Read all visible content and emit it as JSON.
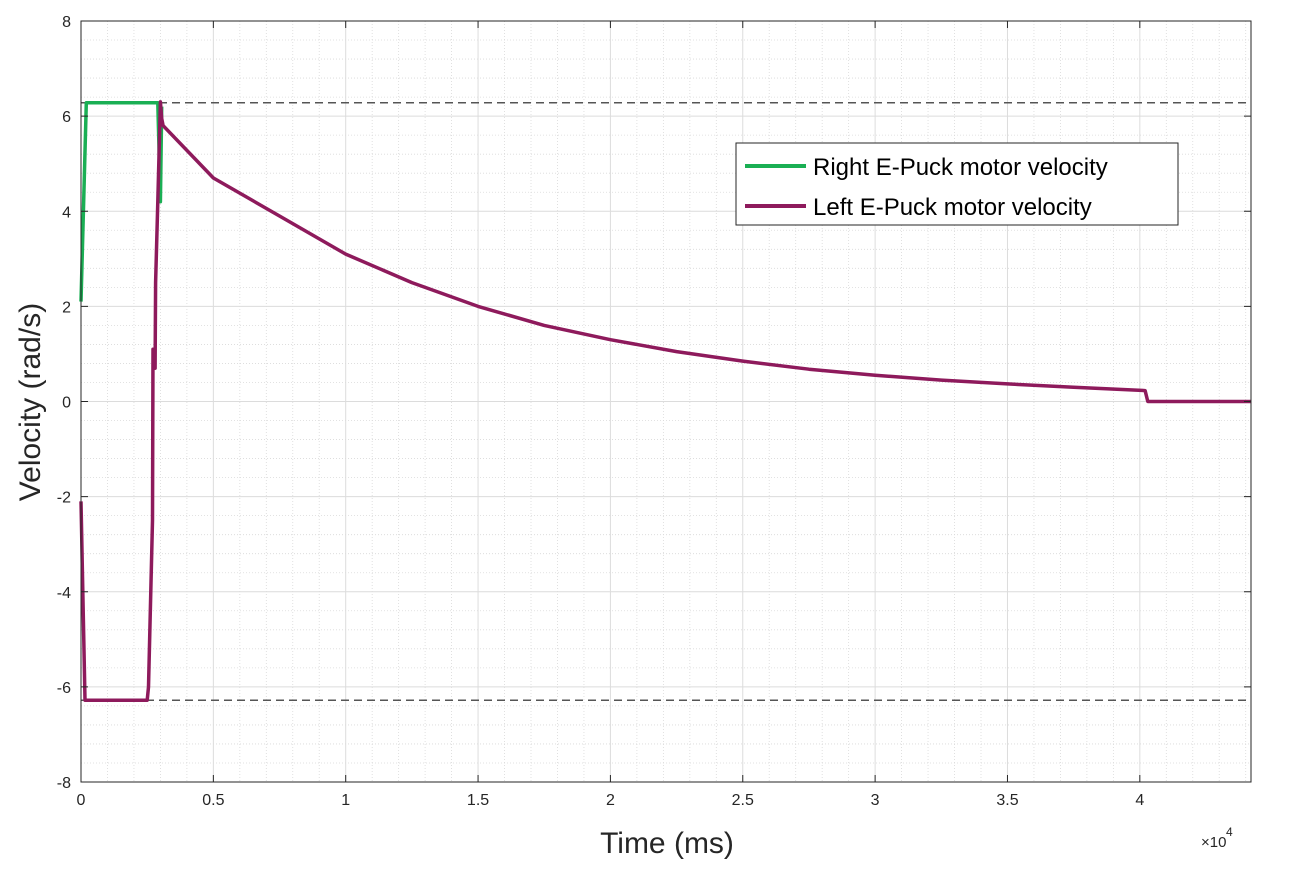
{
  "chart_data": {
    "type": "line",
    "title": "",
    "xlabel": "Time (ms)",
    "ylabel": "Velocity (rad/s)",
    "x_multiplier": "×10",
    "x_multiplier_exp": "4",
    "xlim": [
      0,
      44200
    ],
    "ylim": [
      -8,
      8
    ],
    "xticks": [
      0,
      5000,
      10000,
      15000,
      20000,
      25000,
      30000,
      35000,
      40000
    ],
    "xtick_labels": [
      "0",
      "0.5",
      "1",
      "1.5",
      "2",
      "2.5",
      "3",
      "3.5",
      "4"
    ],
    "yticks": [
      -8,
      -6,
      -4,
      -2,
      0,
      2,
      4,
      6,
      8
    ],
    "ytick_labels": [
      "-8",
      "-6",
      "-4",
      "-2",
      "0",
      "2",
      "4",
      "6",
      "8"
    ],
    "grid": true,
    "minor_grid": true,
    "legend_position": "top-right",
    "reference_lines": [
      {
        "y": 6.28,
        "style": "dashed",
        "color": "#555555"
      },
      {
        "y": -6.28,
        "style": "dashed",
        "color": "#555555"
      }
    ],
    "series": [
      {
        "name": "Right E-Puck motor velocity",
        "color": "#1aaf54",
        "x": [
          0,
          200,
          2800,
          2900,
          3000,
          3050
        ],
        "y": [
          2.1,
          6.28,
          6.28,
          6.28,
          4.2,
          6.2
        ]
      },
      {
        "name": "Left E-Puck motor velocity",
        "color": "#8e1a5c",
        "x": [
          0,
          150,
          2500,
          2550,
          2700,
          2720,
          2800,
          2820,
          2900,
          3000,
          3050,
          3100,
          5000,
          7500,
          10000,
          12500,
          15000,
          17500,
          20000,
          22500,
          25000,
          27500,
          30000,
          32500,
          35000,
          37500,
          40200,
          40300,
          44200
        ],
        "y": [
          -2.1,
          -6.28,
          -6.28,
          -6.0,
          -2.5,
          1.1,
          0.7,
          2.5,
          4.2,
          6.3,
          5.95,
          5.8,
          4.7,
          3.9,
          3.1,
          2.5,
          2.0,
          1.6,
          1.3,
          1.05,
          0.85,
          0.68,
          0.55,
          0.45,
          0.37,
          0.3,
          0.23,
          0.0,
          0.0
        ]
      }
    ]
  }
}
